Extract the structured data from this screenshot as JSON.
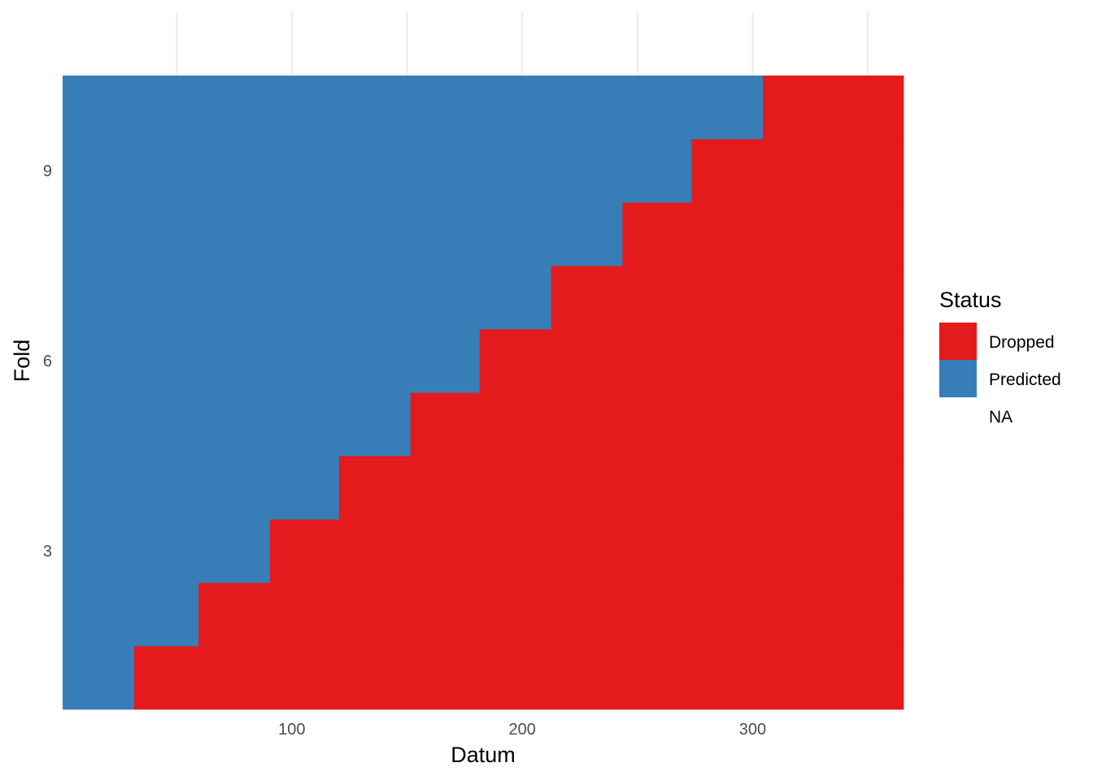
{
  "chart_data": {
    "type": "heatmap",
    "title": "",
    "xlabel": "Datum",
    "ylabel": "Fold",
    "xlim": [
      0.5,
      365.5
    ],
    "ylim": [
      0.5,
      10.5
    ],
    "x_ticks": [
      100,
      200,
      300
    ],
    "y_ticks": [
      3,
      6,
      9
    ],
    "grid": true,
    "legend": {
      "title": "Status",
      "position": "right",
      "entries": [
        {
          "label": "Dropped",
          "color": "#E41A1C"
        },
        {
          "label": "Predicted",
          "color": "#377EB8"
        },
        {
          "label": "NA",
          "color": null
        }
      ]
    },
    "rows": [
      {
        "fold": 1,
        "predicted": [
          1,
          31
        ],
        "dropped": [
          32,
          365
        ]
      },
      {
        "fold": 2,
        "predicted": [
          1,
          59
        ],
        "dropped": [
          60,
          365
        ]
      },
      {
        "fold": 3,
        "predicted": [
          1,
          90
        ],
        "dropped": [
          91,
          365
        ]
      },
      {
        "fold": 4,
        "predicted": [
          1,
          120
        ],
        "dropped": [
          121,
          365
        ]
      },
      {
        "fold": 5,
        "predicted": [
          1,
          151
        ],
        "dropped": [
          152,
          365
        ]
      },
      {
        "fold": 6,
        "predicted": [
          1,
          181
        ],
        "dropped": [
          182,
          365
        ]
      },
      {
        "fold": 7,
        "predicted": [
          1,
          212
        ],
        "dropped": [
          213,
          365
        ]
      },
      {
        "fold": 8,
        "predicted": [
          1,
          243
        ],
        "dropped": [
          244,
          365
        ]
      },
      {
        "fold": 9,
        "predicted": [
          1,
          273
        ],
        "dropped": [
          274,
          365
        ]
      },
      {
        "fold": 10,
        "predicted": [
          1,
          304
        ],
        "dropped": [
          305,
          365
        ]
      }
    ]
  }
}
